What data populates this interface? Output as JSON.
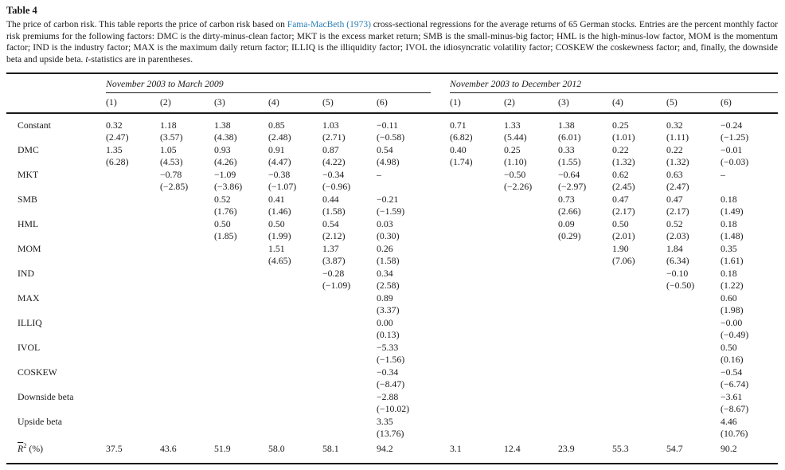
{
  "caption": {
    "label": "Table 4",
    "text_before_link": "The price of carbon risk. This table reports the price of carbon risk based on ",
    "link_text": "Fama-MacBeth (1973)",
    "text_after_link": " cross-sectional regressions for the average returns of 65 German stocks. Entries are the percent monthly factor risk premiums for the following factors: DMC is the dirty-minus-clean factor; MKT is the excess market return; SMB is the small-minus-big factor; HML is the high-minus-low factor, MOM is the momentum factor; IND is the industry factor; MAX is the maximum daily return factor; ILLIQ is the illiquidity factor; IVOL the idiosyncratic volatility factor; COSKEW the coskewness factor; and, finally, the downside beta and upside beta. ",
    "t_italic": "t",
    "text_end": "-statistics are in parentheses."
  },
  "colors": {
    "link": "#2e7eb5",
    "text": "#1b1b1b",
    "rule": "#1a1a1a"
  },
  "chart_data": {
    "type": "table",
    "title": "Table 4. The price of carbon risk",
    "panels": [
      {
        "title": "November 2003 to March 2009",
        "columns": [
          "(1)",
          "(2)",
          "(3)",
          "(4)",
          "(5)",
          "(6)"
        ]
      },
      {
        "title": "November 2003 to December 2012",
        "columns": [
          "(1)",
          "(2)",
          "(3)",
          "(4)",
          "(5)",
          "(6)"
        ]
      }
    ],
    "rows": [
      {
        "label": "Constant",
        "left": [
          [
            "0.32",
            "(2.47)"
          ],
          [
            "1.18",
            "(3.57)"
          ],
          [
            "1.38",
            "(4.38)"
          ],
          [
            "0.85",
            "(2.48)"
          ],
          [
            "1.03",
            "(2.71)"
          ],
          [
            "−0.11",
            "(−0.58)"
          ]
        ],
        "right": [
          [
            "0.71",
            "(6.82)"
          ],
          [
            "1.33",
            "(5.44)"
          ],
          [
            "1.38",
            "(6.01)"
          ],
          [
            "0.25",
            "(1.01)"
          ],
          [
            "0.32",
            "(1.11)"
          ],
          [
            "−0.24",
            "(−1.25)"
          ]
        ]
      },
      {
        "label": "DMC",
        "left": [
          [
            "1.35",
            "(6.28)"
          ],
          [
            "1.05",
            "(4.53)"
          ],
          [
            "0.93",
            "(4.26)"
          ],
          [
            "0.91",
            "(4.47)"
          ],
          [
            "0.87",
            "(4.22)"
          ],
          [
            "0.54",
            "(4.98)"
          ]
        ],
        "right": [
          [
            "0.40",
            "(1.74)"
          ],
          [
            "0.25",
            "(1.10)"
          ],
          [
            "0.33",
            "(1.55)"
          ],
          [
            "0.22",
            "(1.32)"
          ],
          [
            "0.22",
            "(1.32)"
          ],
          [
            "−0.01",
            "(−0.03)"
          ]
        ]
      },
      {
        "label": "MKT",
        "left": [
          [
            "",
            ""
          ],
          [
            "−0.78",
            "(−2.85)"
          ],
          [
            "−1.09",
            "(−3.86)"
          ],
          [
            "−0.38",
            "(−1.07)"
          ],
          [
            "−0.34",
            "(−0.96)"
          ],
          [
            "–",
            ""
          ]
        ],
        "right": [
          [
            "",
            ""
          ],
          [
            "−0.50",
            "(−2.26)"
          ],
          [
            "−0.64",
            "(−2.97)"
          ],
          [
            "0.62",
            "(2.45)"
          ],
          [
            "0.63",
            "(2.47)"
          ],
          [
            "–",
            ""
          ]
        ]
      },
      {
        "label": "SMB",
        "left": [
          [
            "",
            ""
          ],
          [
            "",
            ""
          ],
          [
            "0.52",
            "(1.76)"
          ],
          [
            "0.41",
            "(1.46)"
          ],
          [
            "0.44",
            "(1.58)"
          ],
          [
            "−0.21",
            "(−1.59)"
          ]
        ],
        "right": [
          [
            "",
            ""
          ],
          [
            "",
            ""
          ],
          [
            "0.73",
            "(2.66)"
          ],
          [
            "0.47",
            "(2.17)"
          ],
          [
            "0.47",
            "(2.17)"
          ],
          [
            "0.18",
            "(1.49)"
          ]
        ]
      },
      {
        "label": "HML",
        "left": [
          [
            "",
            ""
          ],
          [
            "",
            ""
          ],
          [
            "0.50",
            "(1.85)"
          ],
          [
            "0.50",
            "(1.99)"
          ],
          [
            "0.54",
            "(2.12)"
          ],
          [
            "0.03",
            "(0.30)"
          ]
        ],
        "right": [
          [
            "",
            ""
          ],
          [
            "",
            ""
          ],
          [
            "0.09",
            "(0.29)"
          ],
          [
            "0.50",
            "(2.01)"
          ],
          [
            "0.52",
            "(2.03)"
          ],
          [
            "0.18",
            "(1.48)"
          ]
        ]
      },
      {
        "label": "MOM",
        "left": [
          [
            "",
            ""
          ],
          [
            "",
            ""
          ],
          [
            "",
            ""
          ],
          [
            "1.51",
            "(4.65)"
          ],
          [
            "1.37",
            "(3.87)"
          ],
          [
            "0.26",
            "(1.58)"
          ]
        ],
        "right": [
          [
            "",
            ""
          ],
          [
            "",
            ""
          ],
          [
            "",
            ""
          ],
          [
            "1.90",
            "(7.06)"
          ],
          [
            "1.84",
            "(6.34)"
          ],
          [
            "0.35",
            "(1.61)"
          ]
        ]
      },
      {
        "label": "IND",
        "left": [
          [
            "",
            ""
          ],
          [
            "",
            ""
          ],
          [
            "",
            ""
          ],
          [
            "",
            ""
          ],
          [
            "−0.28",
            "(−1.09)"
          ],
          [
            "0.34",
            "(2.58)"
          ]
        ],
        "right": [
          [
            "",
            ""
          ],
          [
            "",
            ""
          ],
          [
            "",
            ""
          ],
          [
            "",
            ""
          ],
          [
            "−0.10",
            "(−0.50)"
          ],
          [
            "0.18",
            "(1.22)"
          ]
        ]
      },
      {
        "label": "MAX",
        "left": [
          [
            "",
            ""
          ],
          [
            "",
            ""
          ],
          [
            "",
            ""
          ],
          [
            "",
            ""
          ],
          [
            "",
            ""
          ],
          [
            "0.89",
            "(3.37)"
          ]
        ],
        "right": [
          [
            "",
            ""
          ],
          [
            "",
            ""
          ],
          [
            "",
            ""
          ],
          [
            "",
            ""
          ],
          [
            "",
            ""
          ],
          [
            "0.60",
            "(1.98)"
          ]
        ]
      },
      {
        "label": "ILLIQ",
        "left": [
          [
            "",
            ""
          ],
          [
            "",
            ""
          ],
          [
            "",
            ""
          ],
          [
            "",
            ""
          ],
          [
            "",
            ""
          ],
          [
            "0.00",
            "(0.13)"
          ]
        ],
        "right": [
          [
            "",
            ""
          ],
          [
            "",
            ""
          ],
          [
            "",
            ""
          ],
          [
            "",
            ""
          ],
          [
            "",
            ""
          ],
          [
            "−0.00",
            "(−0.49)"
          ]
        ]
      },
      {
        "label": "IVOL",
        "left": [
          [
            "",
            ""
          ],
          [
            "",
            ""
          ],
          [
            "",
            ""
          ],
          [
            "",
            ""
          ],
          [
            "",
            ""
          ],
          [
            "−5.33",
            "(−1.56)"
          ]
        ],
        "right": [
          [
            "",
            ""
          ],
          [
            "",
            ""
          ],
          [
            "",
            ""
          ],
          [
            "",
            ""
          ],
          [
            "",
            ""
          ],
          [
            "0.50",
            "(0.16)"
          ]
        ]
      },
      {
        "label": "COSKEW",
        "left": [
          [
            "",
            ""
          ],
          [
            "",
            ""
          ],
          [
            "",
            ""
          ],
          [
            "",
            ""
          ],
          [
            "",
            ""
          ],
          [
            "−0.34",
            "(−8.47)"
          ]
        ],
        "right": [
          [
            "",
            ""
          ],
          [
            "",
            ""
          ],
          [
            "",
            ""
          ],
          [
            "",
            ""
          ],
          [
            "",
            ""
          ],
          [
            "−0.54",
            "(−6.74)"
          ]
        ]
      },
      {
        "label": "Downside beta",
        "left": [
          [
            "",
            ""
          ],
          [
            "",
            ""
          ],
          [
            "",
            ""
          ],
          [
            "",
            ""
          ],
          [
            "",
            ""
          ],
          [
            "−2.88",
            "(−10.02)"
          ]
        ],
        "right": [
          [
            "",
            ""
          ],
          [
            "",
            ""
          ],
          [
            "",
            ""
          ],
          [
            "",
            ""
          ],
          [
            "",
            ""
          ],
          [
            "−3.61",
            "(−8.67)"
          ]
        ]
      },
      {
        "label": "Upside beta",
        "left": [
          [
            "",
            ""
          ],
          [
            "",
            ""
          ],
          [
            "",
            ""
          ],
          [
            "",
            ""
          ],
          [
            "",
            ""
          ],
          [
            "3.35",
            "(13.76)"
          ]
        ],
        "right": [
          [
            "",
            ""
          ],
          [
            "",
            ""
          ],
          [
            "",
            ""
          ],
          [
            "",
            ""
          ],
          [
            "",
            ""
          ],
          [
            "4.46",
            "(10.76)"
          ]
        ]
      }
    ],
    "r2_row": {
      "label_base": "R",
      "label_sup": "2",
      "label_suffix": " (%)",
      "left": [
        "37.5",
        "43.6",
        "51.9",
        "58.0",
        "58.1",
        "94.2"
      ],
      "right": [
        "3.1",
        "12.4",
        "23.9",
        "55.3",
        "54.7",
        "90.2"
      ]
    }
  }
}
